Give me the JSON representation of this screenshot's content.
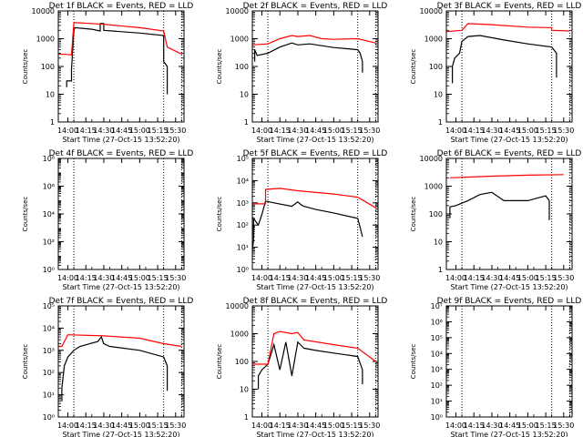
{
  "colors": {
    "events": "#000000",
    "lld": "#ff0000",
    "axis": "#000000"
  },
  "xaxis": {
    "ticks": [
      "14:00",
      "14:15",
      "14:30",
      "14:45",
      "15:00",
      "15:15",
      "15:30"
    ],
    "tick_minutes": [
      0,
      15,
      30,
      45,
      60,
      75,
      90
    ],
    "range_minutes": [
      -8,
      97
    ],
    "dotted_minutes": [
      5,
      80,
      95
    ],
    "label": "Start Time (27-Oct-15 13:52:20)"
  },
  "ylabel": "Counts/sec",
  "chart_data": [
    {
      "type": "line",
      "title": "Det 1f BLACK = Events, RED = LLD",
      "ylog": true,
      "ylim": [
        1,
        10000
      ],
      "yticks": [
        "1",
        "10",
        "100",
        "1000",
        "10000"
      ],
      "ytick_values": [
        1,
        10,
        100,
        1000,
        10000
      ],
      "series": [
        {
          "name": "Events",
          "color": "#000000",
          "x": [
            -1,
            -1,
            3,
            3,
            5,
            6,
            20,
            27,
            27,
            30,
            30,
            60,
            80,
            80,
            83,
            83
          ],
          "y": [
            18,
            30,
            30,
            80,
            2000,
            2500,
            2200,
            1900,
            3500,
            3500,
            2000,
            1600,
            1300,
            150,
            100,
            10
          ]
        },
        {
          "name": "LLD",
          "color": "#ff0000",
          "x": [
            -8,
            -1,
            3,
            5,
            30,
            60,
            80,
            83,
            95
          ],
          "y": [
            280,
            270,
            260,
            3800,
            3300,
            2500,
            1900,
            500,
            280
          ]
        }
      ]
    },
    {
      "type": "line",
      "title": "Det 2f BLACK = Events, RED = LLD",
      "ylog": true,
      "ylim": [
        1,
        10000
      ],
      "yticks": [
        "1",
        "10",
        "100",
        "1000",
        "10000"
      ],
      "ytick_values": [
        1,
        10,
        100,
        1000,
        10000
      ],
      "series": [
        {
          "name": "Events",
          "color": "#000000",
          "x": [
            -6,
            -6,
            -4,
            5,
            15,
            25,
            30,
            40,
            60,
            80,
            82,
            84,
            84
          ],
          "y": [
            150,
            400,
            250,
            300,
            500,
            700,
            600,
            650,
            480,
            400,
            300,
            150,
            60
          ]
        },
        {
          "name": "LLD",
          "color": "#ff0000",
          "x": [
            -8,
            5,
            15,
            25,
            30,
            40,
            50,
            60,
            80,
            95
          ],
          "y": [
            600,
            650,
            1000,
            1300,
            1200,
            1300,
            1000,
            950,
            1000,
            700
          ]
        }
      ]
    },
    {
      "type": "line",
      "title": "Det 3f BLACK = Events, RED = LLD",
      "ylog": true,
      "ylim": [
        1,
        10000
      ],
      "yticks": [
        "1",
        "10",
        "100",
        "1000",
        "10000"
      ],
      "ytick_values": [
        1,
        10,
        100,
        1000,
        10000
      ],
      "series": [
        {
          "name": "Events",
          "color": "#000000",
          "x": [
            -3,
            -3,
            -1,
            3,
            5,
            10,
            20,
            40,
            60,
            80,
            84,
            84
          ],
          "y": [
            25,
            100,
            200,
            300,
            800,
            1200,
            1300,
            900,
            650,
            500,
            300,
            40
          ]
        },
        {
          "name": "LLD",
          "color": "#ff0000",
          "x": [
            -8,
            5,
            10,
            30,
            60,
            80,
            80,
            95
          ],
          "y": [
            1800,
            2000,
            3500,
            3200,
            2600,
            2500,
            2000,
            1900
          ]
        }
      ]
    },
    {
      "type": "line",
      "title": "Det 4f BLACK = Events, RED = LLD",
      "ylog": true,
      "ylim": [
        1,
        100000000
      ],
      "yticks": [
        "10⁰",
        "10²",
        "10⁴",
        "10⁶",
        "10⁸"
      ],
      "ytick_values": [
        1,
        100,
        10000,
        1000000,
        100000000
      ],
      "series": [
        {
          "name": "Events",
          "color": "#000000",
          "x": [],
          "y": []
        },
        {
          "name": "LLD",
          "color": "#ff0000",
          "x": [],
          "y": []
        }
      ]
    },
    {
      "type": "line",
      "title": "Det 5f BLACK = Events, RED = LLD",
      "ylog": true,
      "ylim": [
        1,
        100000
      ],
      "yticks": [
        "10⁰",
        "10¹",
        "10²",
        "10³",
        "10⁴",
        "10⁵"
      ],
      "ytick_values": [
        1,
        10,
        100,
        1000,
        10000,
        100000
      ],
      "series": [
        {
          "name": "Events",
          "color": "#000000",
          "x": [
            -8,
            -7,
            -7,
            -3,
            0,
            3,
            10,
            25,
            30,
            33,
            35,
            45,
            60,
            80,
            82,
            84
          ],
          "y": [
            8,
            20,
            200,
            100,
            300,
            1200,
            1000,
            700,
            1100,
            800,
            700,
            500,
            350,
            200,
            80,
            30
          ]
        },
        {
          "name": "LLD",
          "color": "#ff0000",
          "x": [
            -8,
            3,
            3,
            15,
            30,
            60,
            80,
            95
          ],
          "y": [
            900,
            900,
            4000,
            4500,
            3500,
            2500,
            1800,
            600
          ]
        }
      ]
    },
    {
      "type": "line",
      "title": "Det 6f BLACK = Events, RED = LLD",
      "ylog": true,
      "ylim": [
        1,
        10000
      ],
      "yticks": [
        "1",
        "10",
        "100",
        "1000",
        "10000"
      ],
      "ytick_values": [
        1,
        10,
        100,
        1000,
        10000
      ],
      "series": [
        {
          "name": "Events",
          "color": "#000000",
          "x": [
            -5,
            -5,
            0,
            10,
            20,
            30,
            40,
            60,
            75,
            78,
            78
          ],
          "y": [
            70,
            180,
            200,
            300,
            500,
            600,
            300,
            300,
            450,
            300,
            60
          ]
        },
        {
          "name": "LLD",
          "color": "#ff0000",
          "x": [
            -5,
            30,
            60,
            90
          ],
          "y": [
            2000,
            2300,
            2500,
            2600
          ]
        }
      ]
    },
    {
      "type": "line",
      "title": "Det 7f BLACK = Events, RED = LLD",
      "ylog": true,
      "ylim": [
        1,
        100000
      ],
      "yticks": [
        "10⁰",
        "10¹",
        "10²",
        "10³",
        "10⁴",
        "10⁵"
      ],
      "ytick_values": [
        1,
        10,
        100,
        1000,
        10000,
        100000
      ],
      "series": [
        {
          "name": "Events",
          "color": "#000000",
          "x": [
            -5,
            -5,
            -3,
            0,
            5,
            10,
            25,
            28,
            30,
            35,
            60,
            80,
            83,
            83
          ],
          "y": [
            5,
            20,
            200,
            500,
            1000,
            1500,
            2500,
            4000,
            2000,
            1500,
            1000,
            500,
            200,
            15
          ]
        },
        {
          "name": "LLD",
          "color": "#ff0000",
          "x": [
            -8,
            -5,
            0,
            30,
            60,
            80,
            95
          ],
          "y": [
            1500,
            1500,
            5000,
            4500,
            3500,
            2000,
            1500
          ]
        }
      ]
    },
    {
      "type": "line",
      "title": "Det 8f BLACK = Events, RED = LLD",
      "ylog": true,
      "ylim": [
        1,
        10000
      ],
      "yticks": [
        "1",
        "10",
        "100",
        "1000",
        "10000"
      ],
      "ytick_values": [
        1,
        10,
        100,
        1000,
        10000
      ],
      "series": [
        {
          "name": "Events",
          "color": "#000000",
          "x": [
            -3,
            -3,
            0,
            5,
            10,
            15,
            20,
            25,
            30,
            35,
            45,
            60,
            80,
            84,
            84
          ],
          "y": [
            10,
            30,
            50,
            80,
            400,
            50,
            500,
            30,
            500,
            300,
            250,
            200,
            150,
            50,
            15
          ]
        },
        {
          "name": "LLD",
          "color": "#ff0000",
          "x": [
            -8,
            5,
            10,
            15,
            25,
            30,
            35,
            60,
            80,
            95
          ],
          "y": [
            80,
            80,
            1000,
            1200,
            1000,
            1100,
            600,
            400,
            300,
            100
          ]
        }
      ]
    },
    {
      "type": "line",
      "title": "Det 9f BLACK = Events, RED = LLD",
      "ylog": true,
      "ylim": [
        1,
        10000000
      ],
      "yticks": [
        "10⁰",
        "10¹",
        "10²",
        "10³",
        "10⁴",
        "10⁵",
        "10⁶",
        "10⁷"
      ],
      "ytick_values": [
        1,
        10,
        100,
        1000,
        10000,
        100000,
        1000000,
        10000000
      ],
      "series": [
        {
          "name": "Events",
          "color": "#000000",
          "x": [],
          "y": []
        },
        {
          "name": "LLD",
          "color": "#ff0000",
          "x": [],
          "y": []
        }
      ]
    }
  ]
}
